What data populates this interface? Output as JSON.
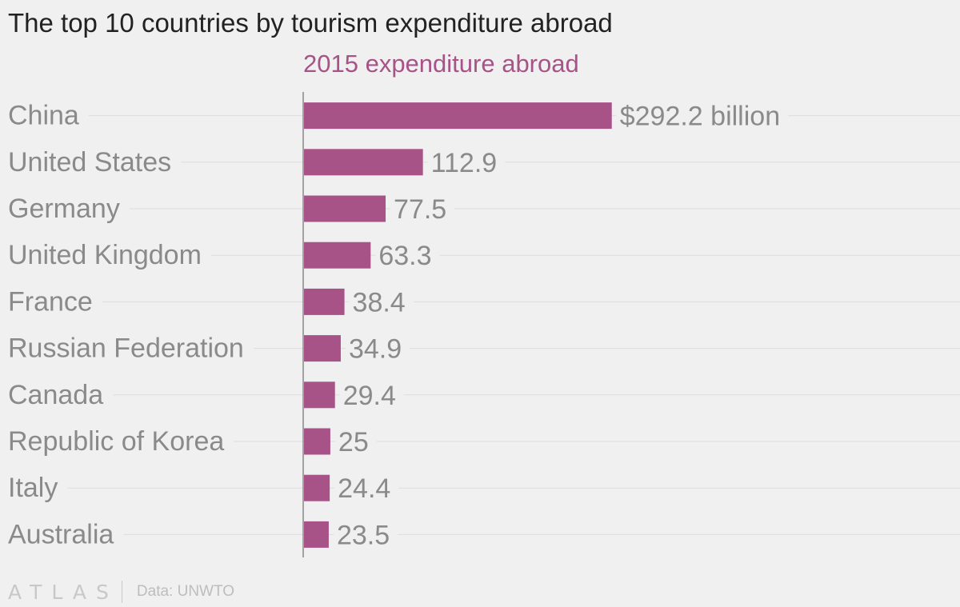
{
  "title": "The top 10 countries by tourism expenditure abroad",
  "colors": {
    "bar": "#a75387",
    "series_label": "#a75387",
    "category_text": "#8a8a8a",
    "value_text": "#8a8a8a",
    "gridline": "#dddddd",
    "axis": "#888888"
  },
  "chart_data": {
    "type": "bar",
    "orientation": "horizontal",
    "series_label": "2015 expenditure abroad",
    "categories": [
      "China",
      "United States",
      "Germany",
      "United Kingdom",
      "France",
      "Russian Federation",
      "Canada",
      "Republic of Korea",
      "Italy",
      "Australia"
    ],
    "values": [
      292.2,
      112.9,
      77.5,
      63.3,
      38.4,
      34.9,
      29.4,
      25,
      24.4,
      23.5
    ],
    "value_labels": [
      "$292.2 billion",
      "112.9",
      "77.5",
      "63.3",
      "38.4",
      "34.9",
      "29.4",
      "25",
      "24.4",
      "23.5"
    ],
    "xlim": [
      0,
      600
    ],
    "grid": true,
    "legend": "none"
  },
  "footer": {
    "logo": "ATLAS",
    "source": "Data: UNWTO"
  }
}
